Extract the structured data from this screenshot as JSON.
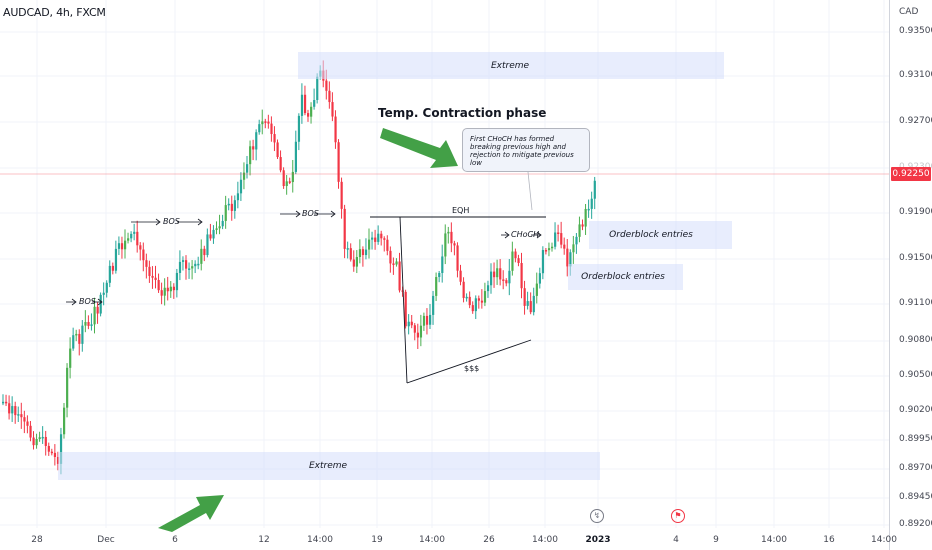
{
  "header": {
    "symbol": "AUDCAD, 4h, FXCM"
  },
  "price_axis": {
    "currency": "CAD",
    "ticks": [
      "0.93500",
      "0.93100",
      "0.92700",
      "0.92300",
      "0.91900",
      "0.91500",
      "0.91100",
      "0.90800",
      "0.90500",
      "0.90200",
      "0.89950",
      "0.89700",
      "0.89450",
      "0.89200"
    ],
    "current_price": "0.92250",
    "current_price_color": "#f23645"
  },
  "time_axis": {
    "ticks": [
      "28",
      "Dec",
      "6",
      "12",
      "14:00",
      "19",
      "14:00",
      "26",
      "14:00",
      "2023",
      "4",
      "9",
      "14:00",
      "16",
      "14:00"
    ]
  },
  "annotations": {
    "phase_title": "Temp. Contraction phase",
    "callout": "First CHoCH has formed breaking previous high and rejection to mitigate previous low",
    "zone_extreme_top": "Extreme",
    "zone_extreme_bottom": "Extreme",
    "orderblock_1": "Orderblock entries",
    "orderblock_2": "Orderblock entries",
    "bos_1": "BOS",
    "bos_2": "BOS",
    "bos_3": "BOS",
    "choch": "CHoCH",
    "eqh": "EQH",
    "sss": "$$$"
  },
  "colors": {
    "bull": "#26a69a",
    "bull_alt": "#4caf50",
    "bear": "#f23645",
    "arrow": "#43a047",
    "zone": "#d6defc",
    "grid": "#f0f3fa"
  },
  "icons": [
    "flash-icon",
    "calendar-flag-icon",
    "green-arrow-icon"
  ]
}
